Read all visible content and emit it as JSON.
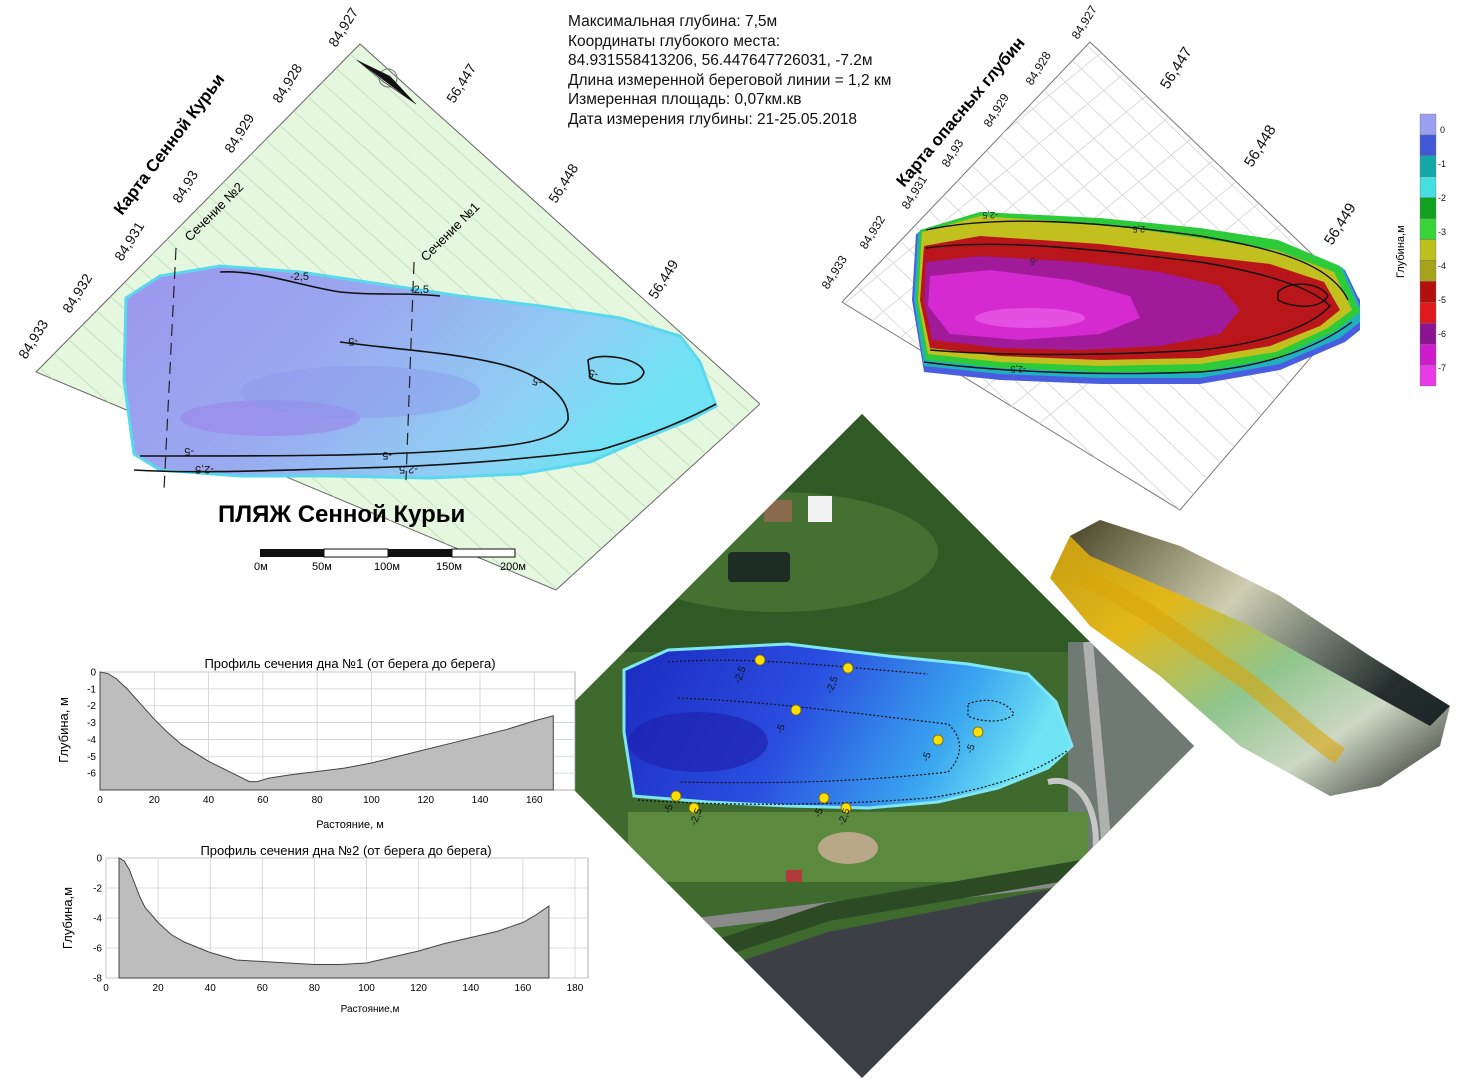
{
  "info": {
    "lines": [
      "Максимальная глубина: 7,5м",
      "Координаты глубокого места:",
      "84.931558413206, 56.447647726031, -7.2м",
      "Длина измеренной береговой линии = 1,2 км",
      "Измеренная площадь: 0,07км.кв",
      "Дата измерения глубины: 21-25.05.2018"
    ]
  },
  "map1": {
    "title": "Карта Сенной Курьи",
    "beach_label": "ПЛЯЖ Сенной Курьи",
    "section1_label": "Сечение №1",
    "section2_label": "Сечение №2",
    "lon_ticks": [
      "84,933",
      "84,932",
      "84,931",
      "84,93",
      "84,929",
      "84,928",
      "84,927"
    ],
    "lat_ticks": [
      "56,447",
      "56,448",
      "56,449"
    ],
    "contour_labels": [
      "-2,5",
      "-2,5",
      "-5",
      "-5",
      "-5",
      "-5",
      "-5",
      "-2,5",
      "-2,5"
    ],
    "scale_labels": [
      "0м",
      "50м",
      "100м",
      "150м",
      "200м"
    ]
  },
  "map2": {
    "title": "Карта опасных глубин",
    "lon_ticks": [
      "84,933",
      "84,932",
      "84,931",
      "84,93",
      "84,929",
      "84,928",
      "84,927"
    ],
    "lat_ticks": [
      "56,447",
      "56,448",
      "56,449"
    ],
    "contour_labels": [
      "-2,5",
      "-2,5",
      "-5",
      "-2,5"
    ]
  },
  "legend": {
    "label": "Глубина,м",
    "ticks": [
      "0",
      "-1",
      "-2",
      "-3",
      "-4",
      "-5",
      "-6",
      "-7"
    ],
    "colors": [
      "#9aa0ee",
      "#3f58d6",
      "#14a7a7",
      "#44e0e0",
      "#12a020",
      "#36d436",
      "#bdbf1c",
      "#a6a21a",
      "#b30f0f",
      "#e01a1a",
      "#8c1490",
      "#ce1ccb",
      "#e83ae8"
    ]
  },
  "satellite": {
    "contour_labels": [
      "-2,5",
      "-2,5",
      "-5",
      "-5",
      "-5",
      "-5",
      "-2,5",
      "-5",
      "-2,5"
    ]
  },
  "profile1": {
    "title": "Профиль сечения дна №1 (от берега до берега)",
    "ylabel": "Глубина, м",
    "xlabel": "Растояние, м"
  },
  "profile2": {
    "title": "Профиль сечения дна №2 (от берега до берега)",
    "ylabel": "Глубина,м",
    "xlabel": "Растояние,м"
  },
  "chart_data": [
    {
      "type": "area",
      "title": "Профиль сечения дна №1 (от берега до берега)",
      "xlabel": "Растояние, м",
      "ylabel": "Глубина, м",
      "xlim": [
        0,
        175
      ],
      "ylim": [
        -7,
        0
      ],
      "xticks": [
        "0",
        "20",
        "40",
        "60",
        "80",
        "100",
        "120",
        "140",
        "160"
      ],
      "yticks": [
        "0",
        "-1",
        "-2",
        "-3",
        "-4",
        "-5",
        "-6"
      ],
      "grid": true,
      "x": [
        0,
        3,
        6,
        10,
        15,
        20,
        25,
        30,
        40,
        50,
        55,
        58,
        62,
        70,
        80,
        90,
        100,
        110,
        120,
        130,
        140,
        150,
        160,
        167
      ],
      "y": [
        0,
        -0.1,
        -0.4,
        -1.0,
        -1.9,
        -2.8,
        -3.6,
        -4.3,
        -5.3,
        -6.1,
        -6.5,
        -6.5,
        -6.3,
        -6.1,
        -5.9,
        -5.7,
        -5.4,
        -5.0,
        -4.6,
        -4.2,
        -3.8,
        -3.4,
        -2.9,
        -2.6
      ]
    },
    {
      "type": "area",
      "title": "Профиль сечения дна №2 (от берега до берега)",
      "xlabel": "Растояние,м",
      "ylabel": "Глубина,м",
      "xlim": [
        0,
        185
      ],
      "ylim": [
        -8,
        0
      ],
      "xticks": [
        "0",
        "20",
        "40",
        "60",
        "80",
        "100",
        "120",
        "140",
        "160",
        "180"
      ],
      "yticks": [
        "0",
        "-2",
        "-4",
        "-6",
        "-8"
      ],
      "grid": true,
      "x": [
        5,
        7,
        9,
        11,
        13,
        15,
        20,
        25,
        30,
        40,
        50,
        60,
        70,
        80,
        90,
        100,
        110,
        120,
        130,
        140,
        150,
        160,
        165,
        170
      ],
      "y": [
        0,
        -0.2,
        -0.8,
        -1.7,
        -2.6,
        -3.3,
        -4.3,
        -5.1,
        -5.6,
        -6.3,
        -6.8,
        -6.9,
        -7.0,
        -7.1,
        -7.1,
        -7.0,
        -6.6,
        -6.2,
        -5.7,
        -5.3,
        -4.9,
        -4.3,
        -3.8,
        -3.2
      ]
    }
  ]
}
